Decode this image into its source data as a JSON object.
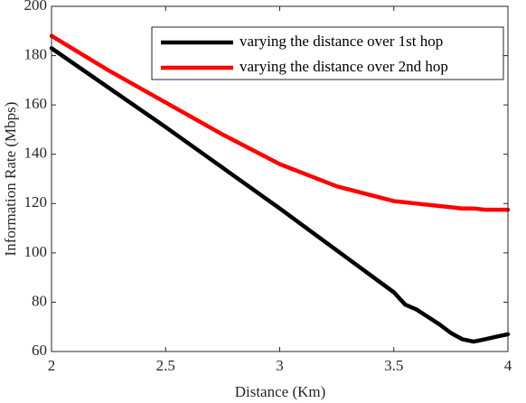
{
  "chart_data": {
    "type": "line",
    "xlabel": "Distance (Km)",
    "ylabel": "Information Rate (Mbps)",
    "x": [
      2,
      2.25,
      2.5,
      2.75,
      3,
      3.25,
      3.5,
      3.55,
      3.6,
      3.7,
      3.75,
      3.8,
      3.85,
      3.9,
      3.95,
      4
    ],
    "series": [
      {
        "name": "varying the distance over 1st hop",
        "color": "#000000",
        "values": [
          183,
          167,
          151,
          134.5,
          118,
          101,
          84,
          79,
          77,
          71,
          67.5,
          65,
          64,
          65,
          66,
          67
        ]
      },
      {
        "name": "varying the distance over 2nd hop",
        "color": "#ff0000",
        "values": [
          188,
          174,
          161,
          148,
          136,
          127,
          121,
          120.5,
          120,
          119,
          118.5,
          118,
          118,
          117.5,
          117.5,
          117.5
        ]
      }
    ],
    "xlim": [
      2,
      4
    ],
    "xticks": [
      2,
      2.5,
      3,
      3.5,
      4
    ],
    "ylim": [
      60,
      200
    ],
    "yticks": [
      60,
      80,
      100,
      120,
      140,
      160,
      180,
      200
    ],
    "grid": false,
    "legend": "upper right"
  }
}
